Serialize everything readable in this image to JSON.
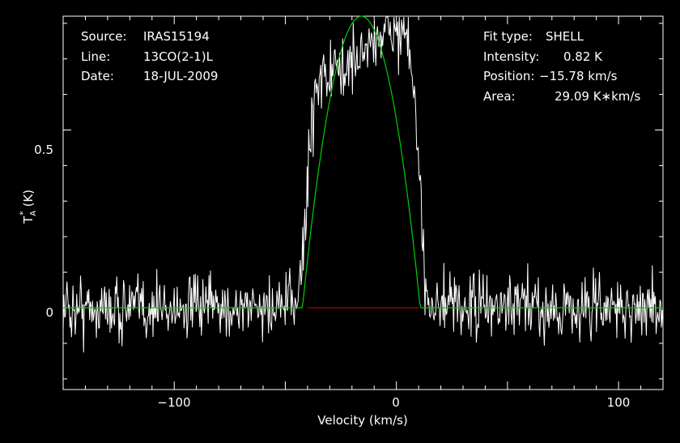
{
  "colors": {
    "background": "#000000",
    "foreground": "#ffffff",
    "fit": "#00d000",
    "window": "#e00000"
  },
  "info_left": [
    {
      "key": "Source:",
      "value": "IRAS15194"
    },
    {
      "key": "Line:",
      "value": "13CO(2-1)L"
    },
    {
      "key": "Date:",
      "value": "18-JUL-2009"
    }
  ],
  "info_right": [
    {
      "key": "Fit type:",
      "value": "SHELL"
    },
    {
      "key": "Intensity:",
      "value": "0.82 K"
    },
    {
      "key": "Position:",
      "value": "−15.78 km/s"
    },
    {
      "key": "Area:",
      "value": "29.09 K∗km/s"
    }
  ],
  "chart_data": {
    "type": "line",
    "title": "",
    "xlabel": "Velocity (km/s)",
    "ylabel": "T_A^* (K)",
    "ylabel_parts": {
      "base": "T",
      "sub": "A",
      "sup": "*",
      "unit": "(K)"
    },
    "xlim": [
      -150,
      120
    ],
    "ylim": [
      -0.23,
      0.82
    ],
    "xticks": [
      -100,
      0,
      100
    ],
    "xtick_labels": [
      "−100",
      "0",
      "100"
    ],
    "yticks": [
      0,
      0.5
    ],
    "ytick_labels": [
      "0",
      "0.5"
    ],
    "grid": false,
    "series": [
      {
        "kind": "spectrum",
        "color": "#ffffff",
        "line_window_kms": [
          -40,
          10
        ],
        "in_window_level_K": 0.72,
        "noise_rms_K": 0.045,
        "channel_width_kms": 0.34
      },
      {
        "kind": "shell_fit",
        "color": "#00d000",
        "peak_K": 0.82,
        "center_kms": -15.78,
        "half_width_kms": 26.5,
        "area_Kkms": 29.09
      },
      {
        "kind": "fit_window",
        "color": "#e00000",
        "range_kms": [
          -40,
          10
        ],
        "y": 0
      }
    ]
  }
}
